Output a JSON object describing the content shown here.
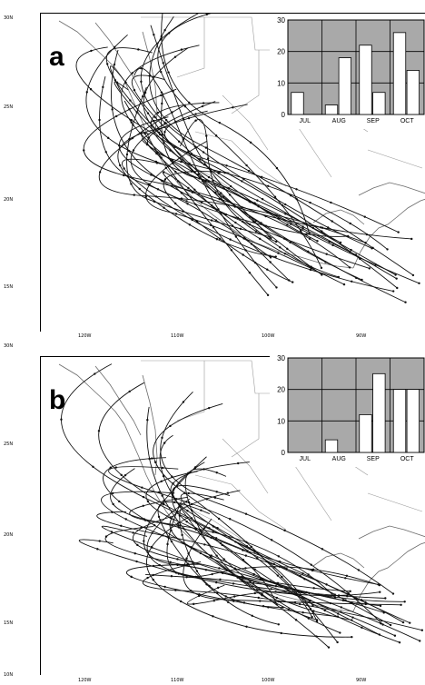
{
  "panels": [
    {
      "letter": "a",
      "lat_labels": [
        "30N",
        "25N",
        "20N",
        "15N"
      ],
      "lon_labels": [
        "120W",
        "110W",
        "100W",
        "90W"
      ],
      "inset_chart": {
        "type": "bar",
        "categories": [
          "JUL",
          "AUG",
          "SEP",
          "OCT"
        ],
        "series": [
          {
            "values": [
              7,
              3,
              22,
              26
            ]
          },
          {
            "values": [
              0,
              18,
              7,
              14
            ]
          }
        ],
        "ylim": [
          0,
          30
        ],
        "yticks": [
          0,
          10,
          20,
          30
        ],
        "grid": true
      }
    },
    {
      "letter": "b",
      "lat_labels": [
        "30N",
        "25N",
        "20N",
        "15N",
        "10N"
      ],
      "lon_labels": [
        "120W",
        "110W",
        "100W",
        "90W"
      ],
      "inset_chart": {
        "type": "bar",
        "categories": [
          "JUL",
          "AUG",
          "SEP",
          "OCT"
        ],
        "series": [
          {
            "values": [
              0,
              4,
              12,
              20
            ]
          },
          {
            "values": [
              0,
              0,
              25,
              20
            ]
          }
        ],
        "ylim": [
          0,
          30
        ],
        "yticks": [
          0,
          10,
          20,
          30
        ],
        "grid": true
      }
    }
  ],
  "chart_data": [
    {
      "type": "bar",
      "categories": [
        "JUL",
        "AUG",
        "SEP",
        "OCT"
      ],
      "series": [
        {
          "values": [
            7,
            3,
            22,
            26
          ]
        },
        {
          "values": [
            0,
            18,
            7,
            14
          ]
        }
      ],
      "ylim": [
        0,
        30
      ],
      "grid": true
    },
    {
      "type": "bar",
      "categories": [
        "JUL",
        "AUG",
        "SEP",
        "OCT"
      ],
      "series": [
        {
          "values": [
            0,
            4,
            12,
            20
          ]
        },
        {
          "values": [
            0,
            0,
            25,
            20
          ]
        }
      ],
      "ylim": [
        0,
        30
      ],
      "grid": true
    }
  ],
  "colors": {
    "coastline": "#555555",
    "borders": "#8a8a8a",
    "tracks": "#111111",
    "inset_background": "#a9a9a9",
    "bar_fill": "#ffffff"
  }
}
